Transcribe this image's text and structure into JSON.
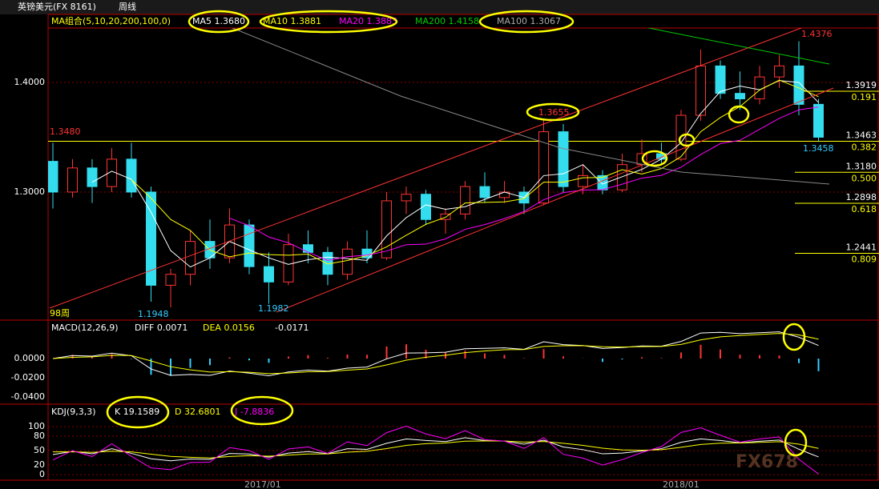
{
  "header": {
    "symbol": "英镑美元(FX 8161)",
    "period": "周线"
  },
  "ma_legend": {
    "label": "MA组合(5,10,20,200,100,0)",
    "items": [
      {
        "text": "MA5 1.3680",
        "color": "#ffffff"
      },
      {
        "text": "MA10 1.3881",
        "color": "#ffff00"
      },
      {
        "text": "MA20 1.3883",
        "color": "#ff00ff"
      },
      {
        "text": "MA200 1.4158",
        "color": "#00cc00"
      },
      {
        "text": "MA100 1.3067",
        "color": "#aaaaaa"
      }
    ]
  },
  "chart_data": {
    "type": "candlestick",
    "ylim": [
      1.1832,
      1.4496
    ],
    "yticks": [
      {
        "value": 1.4,
        "label": "1.4000"
      },
      {
        "value": 1.3,
        "label": "1.3000"
      }
    ],
    "up_color": "#ff3333",
    "down_color": "#33ddee",
    "candles": [
      [
        1.328,
        1.345,
        1.285,
        1.3
      ],
      [
        1.3,
        1.33,
        1.295,
        1.322
      ],
      [
        1.322,
        1.33,
        1.29,
        1.305
      ],
      [
        1.305,
        1.34,
        1.3,
        1.33
      ],
      [
        1.33,
        1.345,
        1.295,
        1.3
      ],
      [
        1.3,
        1.305,
        1.2,
        1.215
      ],
      [
        1.215,
        1.23,
        1.1948,
        1.225
      ],
      [
        1.225,
        1.265,
        1.215,
        1.255
      ],
      [
        1.255,
        1.275,
        1.23,
        1.24
      ],
      [
        1.24,
        1.285,
        1.235,
        1.27
      ],
      [
        1.27,
        1.275,
        1.225,
        1.232
      ],
      [
        1.232,
        1.245,
        1.1982,
        1.218
      ],
      [
        1.218,
        1.262,
        1.215,
        1.252
      ],
      [
        1.252,
        1.265,
        1.235,
        1.245
      ],
      [
        1.245,
        1.25,
        1.215,
        1.225
      ],
      [
        1.225,
        1.255,
        1.22,
        1.248
      ],
      [
        1.248,
        1.265,
        1.235,
        1.24
      ],
      [
        1.24,
        1.3,
        1.238,
        1.292
      ],
      [
        1.292,
        1.305,
        1.28,
        1.298
      ],
      [
        1.298,
        1.302,
        1.27,
        1.275
      ],
      [
        1.275,
        1.285,
        1.262,
        1.28
      ],
      [
        1.28,
        1.31,
        1.275,
        1.305
      ],
      [
        1.305,
        1.318,
        1.29,
        1.295
      ],
      [
        1.295,
        1.31,
        1.29,
        1.3
      ],
      [
        1.3,
        1.305,
        1.28,
        1.29
      ],
      [
        1.29,
        1.3655,
        1.288,
        1.355
      ],
      [
        1.355,
        1.362,
        1.3,
        1.305
      ],
      [
        1.305,
        1.325,
        1.298,
        1.315
      ],
      [
        1.315,
        1.32,
        1.298,
        1.302
      ],
      [
        1.302,
        1.335,
        1.3,
        1.325
      ],
      [
        1.325,
        1.348,
        1.318,
        1.335
      ],
      [
        1.335,
        1.345,
        1.325,
        1.33
      ],
      [
        1.33,
        1.375,
        1.328,
        1.37
      ],
      [
        1.37,
        1.43,
        1.365,
        1.415
      ],
      [
        1.415,
        1.42,
        1.385,
        1.39
      ],
      [
        1.39,
        1.41,
        1.375,
        1.385
      ],
      [
        1.385,
        1.415,
        1.38,
        1.405
      ],
      [
        1.405,
        1.425,
        1.395,
        1.415
      ],
      [
        1.415,
        1.4376,
        1.37,
        1.38
      ],
      [
        1.38,
        1.385,
        1.3458,
        1.35
      ]
    ],
    "fib_levels": [
      {
        "value": 1.3919,
        "label": "1.3919",
        "ratio": "0.191"
      },
      {
        "value": 1.3463,
        "label": "1.3463",
        "ratio": "0.382"
      },
      {
        "value": 1.318,
        "label": "1.3180",
        "ratio": "0.500"
      },
      {
        "value": 1.2898,
        "label": "1.2898",
        "ratio": "0.618"
      },
      {
        "value": 1.2441,
        "label": "1.2441",
        "ratio": "0.809"
      }
    ],
    "annotations": [
      "1.4376",
      "1.3655",
      "1.3480",
      "1.1948",
      "1.1982",
      "1.3458",
      "98周"
    ],
    "dates": [
      "2017/01",
      "2018/01"
    ]
  },
  "macd": {
    "label": "MACD(12,26,9)",
    "diff": "DIFF 0.0071",
    "dea": "DEA 0.0156",
    "macd": "-0.0171",
    "ylim": [
      -0.0475,
      0.04
    ],
    "yticks": [
      {
        "value": 0,
        "label": "0.0000"
      },
      {
        "value": -0.02,
        "label": "-0.0200"
      },
      {
        "value": -0.04,
        "label": "-0.0400"
      }
    ]
  },
  "kdj": {
    "label": "KDJ(9,3,3)",
    "k": "K 19.1589",
    "d": "D 32.6801",
    "j": "J -7.8836",
    "ylim": [
      -11.7,
      146.7
    ],
    "yticks": [
      0,
      20,
      50,
      80,
      100
    ]
  },
  "watermark": "FX678"
}
